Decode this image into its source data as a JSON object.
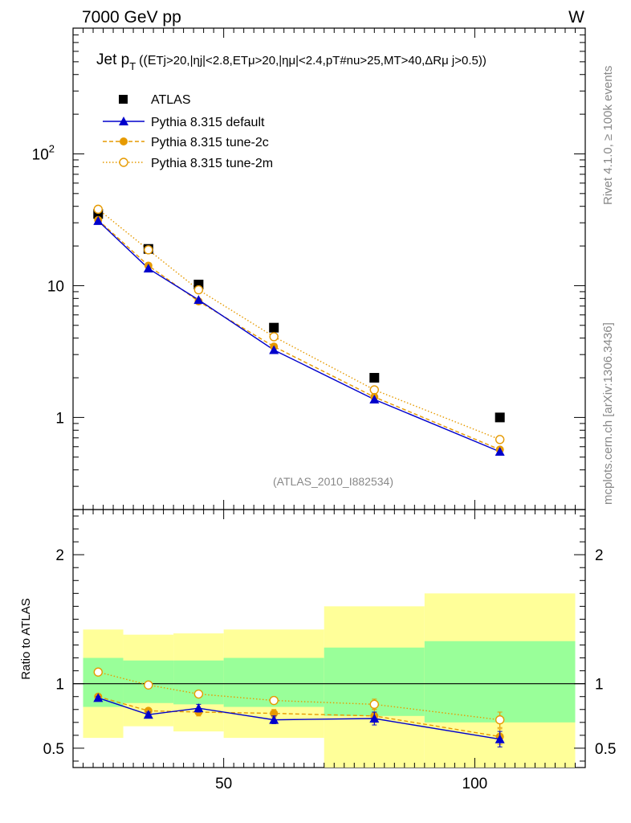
{
  "header": {
    "left": "7000 GeV pp",
    "right": "W"
  },
  "title": {
    "main": "Jet p",
    "main_sub": "T",
    "cuts": "((E",
    "cuts_detail": "Tj>20,|ηj|<2.8,ETμ>20,|ημ|<2.4,pT#nu>25,MT>40,ΔRμ j>0.5))"
  },
  "side_labels": {
    "rivet": "Rivet 4.1.0, ≥ 100k events",
    "mcplots": "mcplots.cern.ch [arXiv:1306.3436]"
  },
  "analysis_id": "(ATLAS_2010_I882534)",
  "colors": {
    "data": "#000000",
    "default": "#0000cc",
    "tune2c": "#e69a00",
    "tune2m": "#e69a00",
    "band_inner": "#99ff99",
    "band_outer": "#ffff99"
  },
  "chart_data": [
    {
      "type": "line",
      "panel": "main",
      "title": "Jet pT",
      "yscale": "log",
      "xlim": [
        20,
        122
      ],
      "ylim": [
        0.2,
        900
      ],
      "ytick_labels": [
        {
          "value": 1,
          "label": "1"
        },
        {
          "value": 10,
          "label": "10"
        },
        {
          "value": 100,
          "label": "10",
          "sup": "2"
        }
      ],
      "legend": [
        "ATLAS",
        "Pythia 8.315 default",
        "Pythia 8.315 tune-2c",
        "Pythia 8.315 tune-2m"
      ],
      "x": [
        25,
        35,
        45,
        60,
        80,
        105
      ],
      "series": [
        {
          "name": "ATLAS",
          "style": "square",
          "values": [
            35,
            19,
            10.2,
            4.8,
            2.0,
            1.0
          ]
        },
        {
          "name": "Pythia 8.315 default",
          "style": "triangle-solid",
          "values": [
            31,
            13.5,
            7.8,
            3.25,
            1.37,
            0.55
          ]
        },
        {
          "name": "Pythia 8.315 tune-2c",
          "style": "circle-dashed",
          "values": [
            31.5,
            14.2,
            7.6,
            3.45,
            1.43,
            0.57
          ]
        },
        {
          "name": "Pythia 8.315 tune-2m",
          "style": "opencircle-dotted",
          "values": [
            38,
            18.7,
            9.3,
            4.1,
            1.62,
            0.68
          ]
        }
      ]
    },
    {
      "type": "line",
      "panel": "ratio",
      "ylabel": "Ratio to ATLAS",
      "xlim": [
        20,
        122
      ],
      "ylim": [
        0.35,
        2.35
      ],
      "xtick_labels": [
        {
          "value": 50,
          "label": "50"
        },
        {
          "value": 100,
          "label": "100"
        }
      ],
      "ytick_labels": [
        {
          "value": 0.5,
          "label": "0.5"
        },
        {
          "value": 1,
          "label": "1"
        },
        {
          "value": 2,
          "label": "2"
        }
      ],
      "bands": [
        {
          "x0": 22,
          "x1": 30,
          "inner": [
            0.82,
            1.2
          ],
          "outer": [
            0.58,
            1.42
          ]
        },
        {
          "x0": 30,
          "x1": 40,
          "inner": [
            0.85,
            1.18
          ],
          "outer": [
            0.67,
            1.38
          ]
        },
        {
          "x0": 40,
          "x1": 50,
          "inner": [
            0.84,
            1.18
          ],
          "outer": [
            0.63,
            1.39
          ]
        },
        {
          "x0": 50,
          "x1": 70,
          "inner": [
            0.82,
            1.2
          ],
          "outer": [
            0.58,
            1.42
          ]
        },
        {
          "x0": 70,
          "x1": 90,
          "inner": [
            0.75,
            1.28
          ],
          "outer": [
            0.35,
            1.6
          ]
        },
        {
          "x0": 90,
          "x1": 120,
          "inner": [
            0.7,
            1.33
          ],
          "outer": [
            0.35,
            1.7
          ]
        }
      ],
      "x": [
        25,
        35,
        45,
        60,
        80,
        105
      ],
      "series": [
        {
          "name": "Pythia 8.315 default",
          "values": [
            0.89,
            0.76,
            0.81,
            0.72,
            0.73,
            0.57
          ],
          "errors": [
            0.01,
            0.02,
            0.03,
            0.03,
            0.05,
            0.06
          ]
        },
        {
          "name": "Pythia 8.315 tune-2c",
          "values": [
            0.9,
            0.79,
            0.78,
            0.77,
            0.75,
            0.59
          ],
          "errors": [
            0.01,
            0.02,
            0.03,
            0.03,
            0.05,
            0.06
          ]
        },
        {
          "name": "Pythia 8.315 tune-2m",
          "values": [
            1.09,
            0.99,
            0.92,
            0.87,
            0.84,
            0.72
          ],
          "errors": [
            0.01,
            0.02,
            0.02,
            0.02,
            0.04,
            0.06
          ]
        }
      ]
    }
  ]
}
